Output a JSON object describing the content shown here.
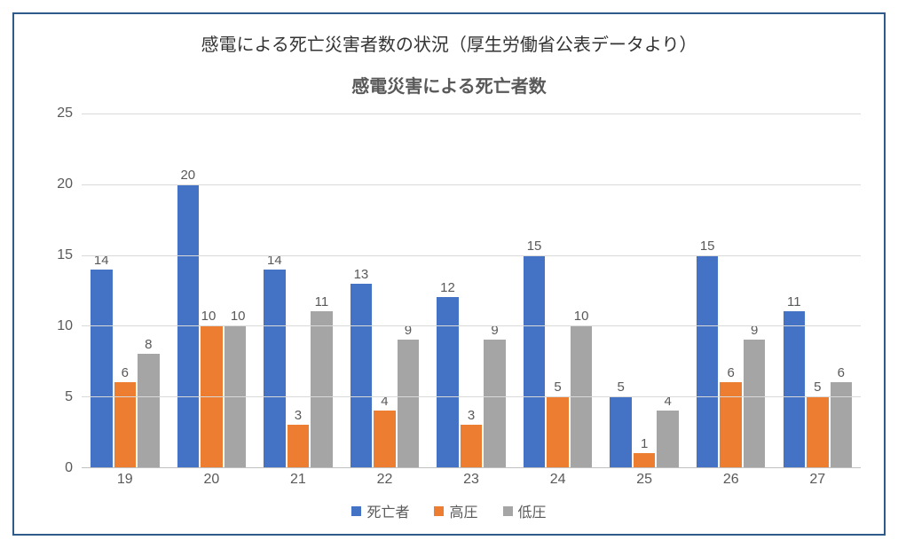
{
  "page_title": "感電による死亡災害者数の状況（厚生労働省公表データより）",
  "chart": {
    "type": "bar",
    "title": "感電災害による死亡者数",
    "title_fontsize": 20,
    "title_color": "#595959",
    "label_fontsize": 16,
    "label_color": "#595959",
    "background_color": "#ffffff",
    "grid_color": "#d9d9d9",
    "axis_color": "#c0c0c0",
    "border_color": "#2e5b8b",
    "ylim": [
      0,
      25
    ],
    "ytick_step": 5,
    "yticks": [
      0,
      5,
      10,
      15,
      20,
      25
    ],
    "categories": [
      "19",
      "20",
      "21",
      "22",
      "23",
      "24",
      "25",
      "26",
      "27"
    ],
    "series": [
      {
        "name": "死亡者",
        "color": "#4472c4",
        "values": [
          14,
          20,
          14,
          13,
          12,
          15,
          5,
          15,
          11
        ]
      },
      {
        "name": "高圧",
        "color": "#ed7d31",
        "values": [
          6,
          10,
          3,
          4,
          3,
          5,
          1,
          6,
          5
        ]
      },
      {
        "name": "低圧",
        "color": "#a5a5a5",
        "values": [
          8,
          10,
          11,
          9,
          9,
          10,
          4,
          9,
          6
        ]
      }
    ],
    "bar_gap": 2,
    "group_padding": 10
  }
}
